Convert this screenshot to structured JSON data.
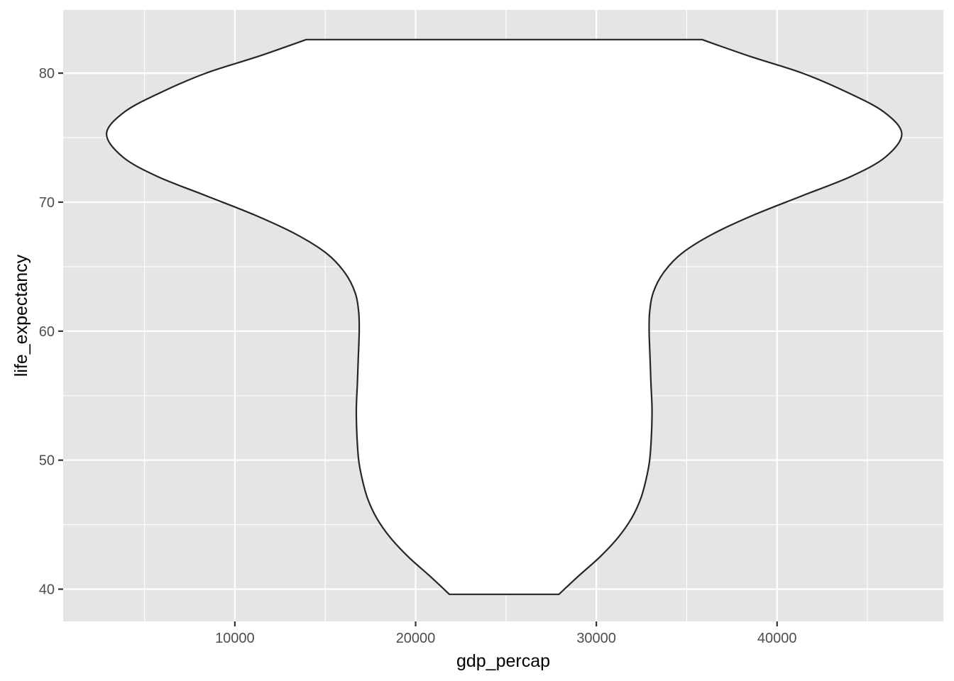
{
  "chart_data": {
    "type": "violin",
    "title": "",
    "xlabel": "gdp_percap",
    "ylabel": "life_expectancy",
    "xlim": [
      500,
      49200
    ],
    "ylim": [
      37.5,
      84.9
    ],
    "x_ticks": [
      10000,
      20000,
      30000,
      40000
    ],
    "x_tick_labels": [
      "10000",
      "20000",
      "30000",
      "40000"
    ],
    "y_ticks": [
      40,
      50,
      60,
      70,
      80
    ],
    "y_tick_labels": [
      "40",
      "50",
      "60",
      "70",
      "80"
    ],
    "grid": true,
    "legend": "none",
    "colors": {
      "panel_background": "#e5e5e5",
      "grid_line": "#ffffff",
      "violin_fill": "#ffffff",
      "violin_outline": "#262626",
      "tick_label": "#4d4d4d",
      "axis_title": "#000000"
    },
    "violin": {
      "center_x": 24900,
      "y_min": 39.6,
      "y_max": 82.6,
      "profile": [
        {
          "y": 39.6,
          "half_width": 3030
        },
        {
          "y": 41.0,
          "half_width": 4100
        },
        {
          "y": 42.5,
          "half_width": 5300
        },
        {
          "y": 44.0,
          "half_width": 6300
        },
        {
          "y": 45.5,
          "half_width": 7050
        },
        {
          "y": 47.0,
          "half_width": 7550
        },
        {
          "y": 48.5,
          "half_width": 7850
        },
        {
          "y": 50.0,
          "half_width": 8050
        },
        {
          "y": 52.0,
          "half_width": 8150
        },
        {
          "y": 54.0,
          "half_width": 8180
        },
        {
          "y": 56.0,
          "half_width": 8120
        },
        {
          "y": 58.0,
          "half_width": 8070
        },
        {
          "y": 60.0,
          "half_width": 8020
        },
        {
          "y": 61.5,
          "half_width": 8050
        },
        {
          "y": 63.0,
          "half_width": 8250
        },
        {
          "y": 64.5,
          "half_width": 8800
        },
        {
          "y": 66.0,
          "half_width": 9800
        },
        {
          "y": 67.5,
          "half_width": 11500
        },
        {
          "y": 69.0,
          "half_width": 13800
        },
        {
          "y": 70.5,
          "half_width": 16500
        },
        {
          "y": 72.0,
          "half_width": 19200
        },
        {
          "y": 73.5,
          "half_width": 21100
        },
        {
          "y": 75.3,
          "half_width": 22000
        },
        {
          "y": 77.0,
          "half_width": 21000
        },
        {
          "y": 78.5,
          "half_width": 19000
        },
        {
          "y": 80.0,
          "half_width": 16500
        },
        {
          "y": 81.3,
          "half_width": 13600
        },
        {
          "y": 82.6,
          "half_width": 10950
        }
      ]
    }
  }
}
